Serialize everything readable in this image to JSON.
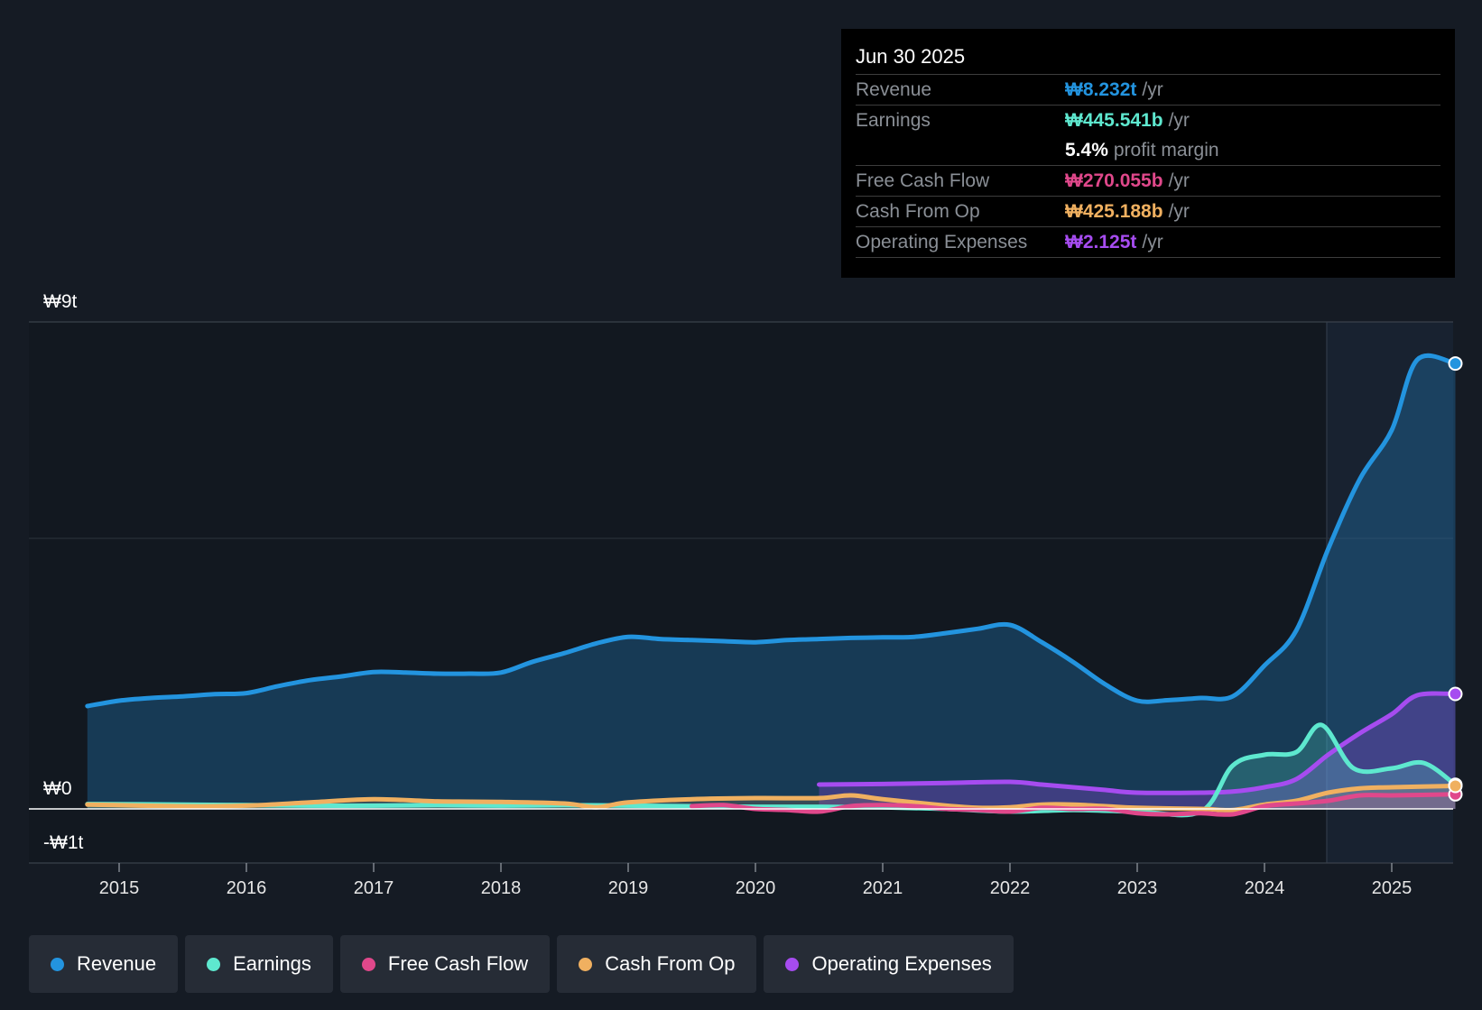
{
  "tooltip": {
    "date": "Jun 30 2025",
    "rows": [
      {
        "label": "Revenue",
        "value": "₩8.232t",
        "unit": "/yr",
        "color": "#2394df"
      },
      {
        "label": "Earnings",
        "value": "₩445.541b",
        "unit": "/yr",
        "color": "#5ee8cf"
      },
      {
        "label": "",
        "value": "5.4%",
        "unit": "profit margin",
        "color": "#ffffff"
      },
      {
        "label": "Free Cash Flow",
        "value": "₩270.055b",
        "unit": "/yr",
        "color": "#e0488b"
      },
      {
        "label": "Cash From Op",
        "value": "₩425.188b",
        "unit": "/yr",
        "color": "#f0b060"
      },
      {
        "label": "Operating Expenses",
        "value": "₩2.125t",
        "unit": "/yr",
        "color": "#a64cf0"
      }
    ]
  },
  "legend": [
    {
      "label": "Revenue",
      "color": "#2394df"
    },
    {
      "label": "Earnings",
      "color": "#5ee8cf"
    },
    {
      "label": "Free Cash Flow",
      "color": "#e0488b"
    },
    {
      "label": "Cash From Op",
      "color": "#f0b060"
    },
    {
      "label": "Operating Expenses",
      "color": "#a64cf0"
    }
  ],
  "chart_data": {
    "type": "area",
    "title": "",
    "xlabel": "",
    "ylabel": "",
    "y_tick_labels": [
      "₩9t",
      "₩0",
      "-₩1t"
    ],
    "y_ticks": [
      9,
      0,
      -1
    ],
    "x_tick_labels": [
      "2015",
      "2016",
      "2017",
      "2018",
      "2019",
      "2020",
      "2021",
      "2022",
      "2023",
      "2024",
      "2025"
    ],
    "xlim": [
      2014.7,
      2025.5
    ],
    "ylim": [
      -1,
      9
    ],
    "unit": "₩ trillions",
    "grid": true,
    "legend_position": "bottom",
    "series": [
      {
        "name": "Revenue",
        "color": "#2394df",
        "points": [
          [
            2014.75,
            1.9
          ],
          [
            2015.0,
            2.0
          ],
          [
            2015.25,
            2.05
          ],
          [
            2015.5,
            2.08
          ],
          [
            2015.75,
            2.12
          ],
          [
            2016.0,
            2.14
          ],
          [
            2016.25,
            2.27
          ],
          [
            2016.5,
            2.38
          ],
          [
            2016.75,
            2.45
          ],
          [
            2017.0,
            2.53
          ],
          [
            2017.25,
            2.52
          ],
          [
            2017.5,
            2.5
          ],
          [
            2017.75,
            2.5
          ],
          [
            2018.0,
            2.52
          ],
          [
            2018.25,
            2.72
          ],
          [
            2018.5,
            2.88
          ],
          [
            2018.75,
            3.06
          ],
          [
            2019.0,
            3.18
          ],
          [
            2019.25,
            3.14
          ],
          [
            2019.5,
            3.12
          ],
          [
            2019.75,
            3.1
          ],
          [
            2020.0,
            3.08
          ],
          [
            2020.25,
            3.12
          ],
          [
            2020.5,
            3.14
          ],
          [
            2020.75,
            3.16
          ],
          [
            2021.0,
            3.17
          ],
          [
            2021.25,
            3.18
          ],
          [
            2021.5,
            3.25
          ],
          [
            2021.75,
            3.33
          ],
          [
            2022.0,
            3.4
          ],
          [
            2022.25,
            3.08
          ],
          [
            2022.5,
            2.71
          ],
          [
            2022.75,
            2.3
          ],
          [
            2023.0,
            2.0
          ],
          [
            2023.25,
            2.01
          ],
          [
            2023.5,
            2.05
          ],
          [
            2023.75,
            2.08
          ],
          [
            2024.0,
            2.65
          ],
          [
            2024.25,
            3.3
          ],
          [
            2024.5,
            4.8
          ],
          [
            2024.75,
            6.1
          ],
          [
            2025.0,
            7.0
          ],
          [
            2025.2,
            8.3
          ],
          [
            2025.5,
            8.232
          ]
        ]
      },
      {
        "name": "Earnings",
        "color": "#5ee8cf",
        "points": [
          [
            2014.75,
            0.09
          ],
          [
            2015.5,
            0.08
          ],
          [
            2016.0,
            0.07
          ],
          [
            2016.5,
            0.06
          ],
          [
            2017.0,
            0.06
          ],
          [
            2017.5,
            0.07
          ],
          [
            2018.0,
            0.06
          ],
          [
            2018.5,
            0.07
          ],
          [
            2019.0,
            0.06
          ],
          [
            2019.5,
            0.05
          ],
          [
            2020.0,
            0.04
          ],
          [
            2020.5,
            0.04
          ],
          [
            2021.0,
            0.03
          ],
          [
            2021.5,
            0.0
          ],
          [
            2022.0,
            -0.05
          ],
          [
            2022.5,
            -0.02
          ],
          [
            2023.0,
            -0.05
          ],
          [
            2023.5,
            -0.05
          ],
          [
            2023.75,
            0.8
          ],
          [
            2024.0,
            1.0
          ],
          [
            2024.25,
            1.05
          ],
          [
            2024.45,
            1.55
          ],
          [
            2024.7,
            0.75
          ],
          [
            2025.0,
            0.75
          ],
          [
            2025.25,
            0.85
          ],
          [
            2025.5,
            0.445541
          ]
        ]
      },
      {
        "name": "Free Cash Flow",
        "color": "#e0488b",
        "points": [
          [
            2019.5,
            0.05
          ],
          [
            2019.75,
            0.07
          ],
          [
            2020.0,
            0.0
          ],
          [
            2020.25,
            -0.02
          ],
          [
            2020.5,
            -0.05
          ],
          [
            2020.75,
            0.05
          ],
          [
            2021.0,
            0.07
          ],
          [
            2021.25,
            0.05
          ],
          [
            2021.5,
            0.0
          ],
          [
            2021.75,
            -0.02
          ],
          [
            2022.0,
            -0.05
          ],
          [
            2022.25,
            0.02
          ],
          [
            2022.5,
            0.0
          ],
          [
            2022.75,
            0.0
          ],
          [
            2023.0,
            -0.08
          ],
          [
            2023.25,
            -0.1
          ],
          [
            2023.5,
            -0.08
          ],
          [
            2023.75,
            -0.1
          ],
          [
            2024.0,
            0.05
          ],
          [
            2024.25,
            0.1
          ],
          [
            2024.5,
            0.15
          ],
          [
            2024.75,
            0.25
          ],
          [
            2025.0,
            0.25
          ],
          [
            2025.5,
            0.270055
          ]
        ]
      },
      {
        "name": "Cash From Op",
        "color": "#f0b060",
        "points": [
          [
            2014.75,
            0.08
          ],
          [
            2015.5,
            0.05
          ],
          [
            2016.0,
            0.06
          ],
          [
            2016.5,
            0.12
          ],
          [
            2017.0,
            0.18
          ],
          [
            2017.5,
            0.14
          ],
          [
            2018.0,
            0.13
          ],
          [
            2018.5,
            0.1
          ],
          [
            2018.75,
            0.03
          ],
          [
            2019.0,
            0.12
          ],
          [
            2019.5,
            0.18
          ],
          [
            2020.0,
            0.2
          ],
          [
            2020.5,
            0.2
          ],
          [
            2020.75,
            0.25
          ],
          [
            2021.0,
            0.18
          ],
          [
            2021.5,
            0.06
          ],
          [
            2021.75,
            0.02
          ],
          [
            2022.0,
            0.03
          ],
          [
            2022.25,
            0.08
          ],
          [
            2022.5,
            0.08
          ],
          [
            2022.75,
            0.05
          ],
          [
            2023.0,
            0.02
          ],
          [
            2023.5,
            0.0
          ],
          [
            2023.75,
            -0.02
          ],
          [
            2024.0,
            0.08
          ],
          [
            2024.25,
            0.15
          ],
          [
            2024.5,
            0.3
          ],
          [
            2024.75,
            0.38
          ],
          [
            2025.0,
            0.4
          ],
          [
            2025.5,
            0.425188
          ]
        ]
      },
      {
        "name": "Operating Expenses",
        "color": "#a64cf0",
        "points": [
          [
            2020.5,
            0.45
          ],
          [
            2021.0,
            0.46
          ],
          [
            2021.5,
            0.48
          ],
          [
            2022.0,
            0.5
          ],
          [
            2022.25,
            0.45
          ],
          [
            2022.5,
            0.4
          ],
          [
            2022.75,
            0.35
          ],
          [
            2023.0,
            0.3
          ],
          [
            2023.5,
            0.3
          ],
          [
            2023.75,
            0.32
          ],
          [
            2024.0,
            0.4
          ],
          [
            2024.25,
            0.55
          ],
          [
            2024.5,
            1.0
          ],
          [
            2024.75,
            1.4
          ],
          [
            2025.0,
            1.75
          ],
          [
            2025.2,
            2.1
          ],
          [
            2025.5,
            2.125
          ]
        ]
      }
    ]
  }
}
